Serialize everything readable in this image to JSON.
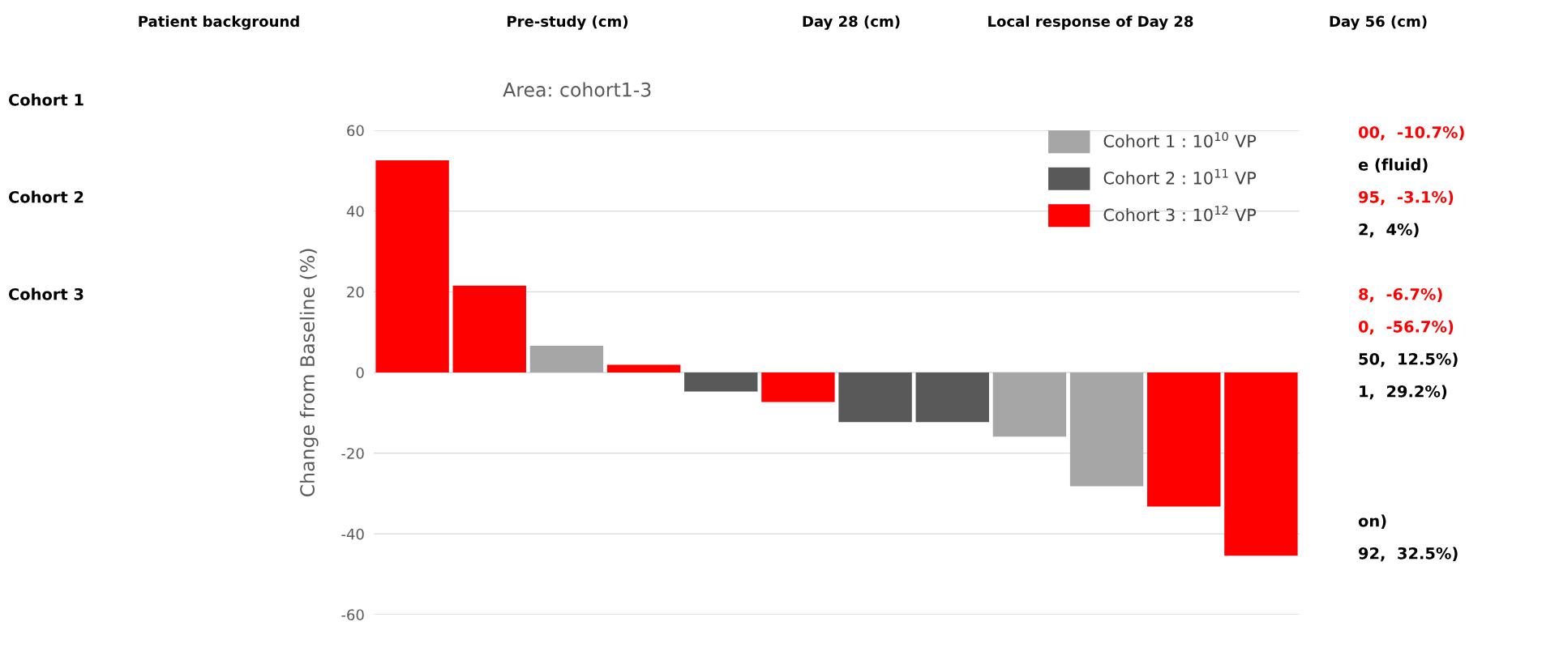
{
  "chart_data": {
    "type": "bar",
    "title": "Area: cohort1-3",
    "ylabel": "Change from Baseline (%)",
    "categories": [
      null,
      null,
      null,
      null,
      null,
      null,
      null,
      null,
      null,
      null,
      null,
      null
    ],
    "series": [
      {
        "name": "Cohort 1 : 10$^{10}$ VP",
        "color": "#a6a6a6",
        "values": [
          null,
          null,
          6.6,
          null,
          null,
          null,
          null,
          null,
          -15.9,
          -28.2,
          null,
          null
        ]
      },
      {
        "name": "Cohort 2 : 10$^{11}$ VP",
        "color": "#595959",
        "values": [
          null,
          null,
          null,
          null,
          -4.7,
          null,
          -12.3,
          -12.3,
          null,
          null,
          null,
          null
        ]
      },
      {
        "name": "Cohort 3 : 10$^{12}$ VP",
        "color": "#ff0000",
        "values": [
          52.6,
          21.5,
          null,
          1.9,
          null,
          -7.3,
          null,
          null,
          null,
          null,
          -33.2,
          -45.4
        ]
      }
    ],
    "ylim": [
      -60,
      60
    ],
    "yticks": [
      -60,
      -40,
      -20,
      0,
      20,
      40,
      60
    ],
    "grid": "y",
    "legend": "top right",
    "annotations": [
      "Patient background",
      "Pre-study (cm)",
      "Day 28 (cm)",
      "Local response of Day 28",
      "Day 56 (cm)",
      "Cohort 1",
      "Cohort 2",
      "Cohort 3",
      "00,  -10.7%)",
      "e (fluid)",
      "95,  -3.1%)",
      "2,  4%)",
      "8,  -6.7%)",
      "0,  -56.7%)",
      "50,  12.5%)",
      "1,  29.2%)",
      "on)",
      "92,  32.5%)"
    ]
  }
}
